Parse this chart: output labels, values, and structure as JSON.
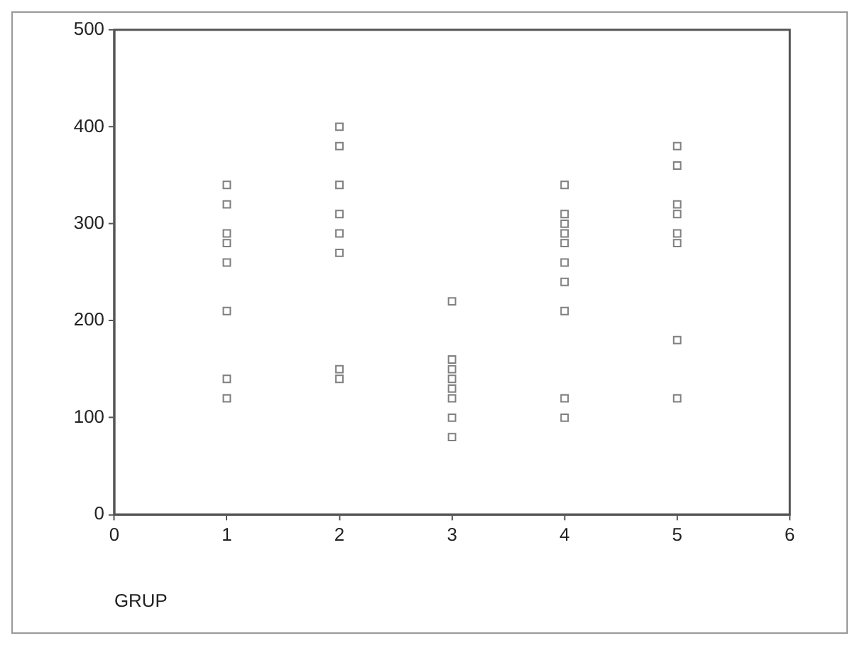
{
  "chart_data": {
    "type": "scatter",
    "xlabel": "GRUP",
    "x": [
      1,
      1,
      1,
      1,
      1,
      1,
      1,
      1,
      2,
      2,
      2,
      2,
      2,
      2,
      2,
      2,
      3,
      3,
      3,
      3,
      3,
      3,
      3,
      3,
      4,
      4,
      4,
      4,
      4,
      4,
      4,
      4,
      4,
      4,
      5,
      5,
      5,
      5,
      5,
      5,
      5,
      5
    ],
    "values": [
      340,
      320,
      290,
      280,
      260,
      210,
      140,
      120,
      400,
      380,
      340,
      310,
      290,
      270,
      150,
      140,
      220,
      160,
      150,
      140,
      130,
      120,
      100,
      80,
      340,
      310,
      300,
      290,
      280,
      260,
      240,
      210,
      120,
      100,
      380,
      360,
      320,
      310,
      290,
      280,
      180,
      120
    ],
    "color": "#808080",
    "marker": "square",
    "xlim": [
      0,
      6
    ],
    "xticks": [
      0,
      1,
      2,
      3,
      4,
      5,
      6
    ],
    "ylim": [
      0,
      500
    ],
    "yticks": [
      0,
      100,
      200,
      300,
      400,
      500
    ],
    "grid": false,
    "legend": false
  }
}
